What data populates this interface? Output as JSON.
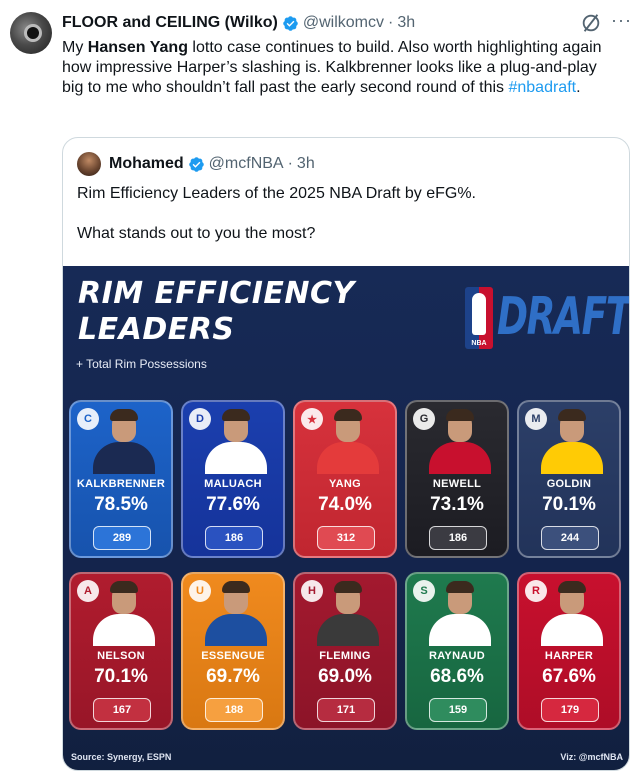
{
  "tweet": {
    "author_name": "FLOOR and CEILING (Wilko)",
    "handle": "@wilkomcv",
    "separator": "·",
    "time": "3h",
    "text_parts": {
      "t1": "My ",
      "b1": "Hansen Yang",
      "t2": " lotto case continues to build. Also worth highlighting again how impressive Harper’s slashing is. Kalkbrenner looks like a plug-and-play big to me who shouldn’t fall past the early second round of this ",
      "hashtag": "#nbadraft",
      "t3": "."
    },
    "more_label": "···"
  },
  "quote": {
    "author_name": "Mohamed",
    "handle": "@mcfNBA",
    "separator": "·",
    "time": "3h",
    "line1": "Rim Efficiency Leaders of the 2025 NBA Draft by eFG%.",
    "line2": "What stands out to you the most?"
  },
  "graphic": {
    "title_line1": "RIM EFFICIENCY",
    "title_line2": "LEADERS",
    "subtitle": "+ Total Rim Possessions",
    "logo_text": "DRAFT",
    "nba_text": "NBA",
    "source": "Source: Synergy, ESPN",
    "viz": "Viz: @mcfNBA",
    "players": [
      {
        "name": "KALKBRENNER",
        "efg": "78.5%",
        "poss": "289",
        "bg": "#1d63c9",
        "bg2": "#1753ad",
        "box": "#2c74d8",
        "logo": "C",
        "jersey": "#1b2a52"
      },
      {
        "name": "MALUACH",
        "efg": "77.6%",
        "poss": "186",
        "bg": "#1b3fae",
        "bg2": "#15339a",
        "box": "#2a52c0",
        "logo": "D",
        "jersey": "#ffffff"
      },
      {
        "name": "YANG",
        "efg": "74.0%",
        "poss": "312",
        "bg": "#d7323c",
        "bg2": "#c02630",
        "box": "#e04a52",
        "logo": "★",
        "jersey": "#e43b3b"
      },
      {
        "name": "NEWELL",
        "efg": "73.1%",
        "poss": "186",
        "bg": "#2a2a30",
        "bg2": "#1c1c22",
        "box": "#3b3b42",
        "logo": "G",
        "jersey": "#c8102e"
      },
      {
        "name": "GOLDIN",
        "efg": "70.1%",
        "poss": "244",
        "bg": "#2c3f68",
        "bg2": "#22335a",
        "box": "#3c507c",
        "logo": "M",
        "jersey": "#ffcb05"
      },
      {
        "name": "NELSON",
        "efg": "70.1%",
        "poss": "167",
        "bg": "#b01c2e",
        "bg2": "#981628",
        "box": "#c23040",
        "logo": "A",
        "jersey": "#ffffff"
      },
      {
        "name": "ESSENGUE",
        "efg": "69.7%",
        "poss": "188",
        "bg": "#f08a1e",
        "bg2": "#d97812",
        "box": "#f6a040",
        "logo": "U",
        "jersey": "#1d4fa0"
      },
      {
        "name": "FLEMING",
        "efg": "69.0%",
        "poss": "171",
        "bg": "#a3192f",
        "bg2": "#8c1428",
        "box": "#b62c40",
        "logo": "H",
        "jersey": "#3a3a3a"
      },
      {
        "name": "RAYNAUD",
        "efg": "68.6%",
        "poss": "159",
        "bg": "#1f7a4e",
        "bg2": "#176640",
        "box": "#2f8c5e",
        "logo": "S",
        "jersey": "#ffffff"
      },
      {
        "name": "HARPER",
        "efg": "67.6%",
        "poss": "179",
        "bg": "#c8102e",
        "bg2": "#ae0d27",
        "box": "#d6283f",
        "logo": "R",
        "jersey": "#ffffff"
      }
    ]
  }
}
